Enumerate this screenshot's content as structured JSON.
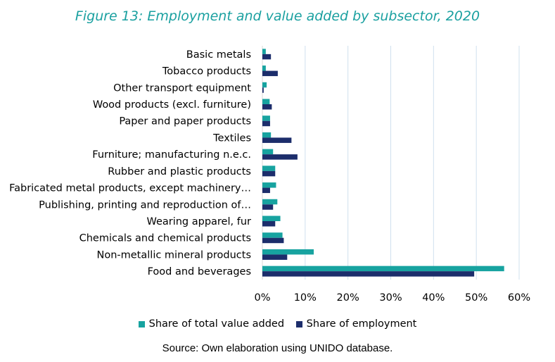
{
  "title": "Figure 13: Employment and value added by subsector, 2020",
  "source": "Source: Own elaboration using UNIDO database.",
  "colors": {
    "value_added": "#17a3a0",
    "employment": "#1c2d6b",
    "grid": "#cfe0ee"
  },
  "chart_data": {
    "type": "bar",
    "orientation": "horizontal",
    "categories": [
      "Basic metals",
      "Tobacco products",
      "Other transport equipment",
      "Wood products (excl. furniture)",
      "Paper and paper products",
      "Textiles",
      "Furniture; manufacturing n.e.c.",
      "Rubber and plastic products",
      "Fabricated metal products, except machinery…",
      "Publishing, printing and reproduction of…",
      "Wearing apparel, fur",
      "Chemicals and chemical products",
      "Non-metallic mineral products",
      "Food and beverages"
    ],
    "series": [
      {
        "name": "Share of total value added",
        "values": [
          0.8,
          0.8,
          1.0,
          1.7,
          1.8,
          2.0,
          2.5,
          3.0,
          3.2,
          3.5,
          4.2,
          4.7,
          12.0,
          56.5
        ]
      },
      {
        "name": "Share of employment",
        "values": [
          2.0,
          3.6,
          0.3,
          2.2,
          1.8,
          6.8,
          8.2,
          3.0,
          1.8,
          2.5,
          3.0,
          5.0,
          5.8,
          49.5
        ]
      }
    ],
    "xlim": [
      0,
      60
    ],
    "xticks": [
      "0%",
      "10%",
      "20%",
      "30%",
      "40%",
      "50%",
      "60%"
    ],
    "legend": "bottom",
    "grid": true
  }
}
